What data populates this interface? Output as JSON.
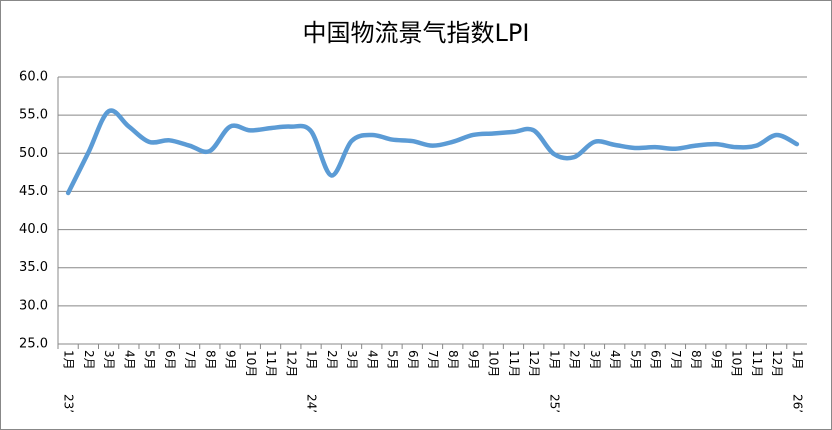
{
  "chart_data": {
    "type": "line",
    "title": "中国物流景气指数LPI",
    "categories": [
      "1月",
      "2月",
      "3月",
      "4月",
      "5月",
      "6月",
      "7月",
      "8月",
      "9月",
      "10月",
      "11月",
      "12月",
      "1月",
      "2月",
      "3月",
      "4月",
      "5月",
      "6月",
      "7月",
      "8月",
      "9月",
      "10月",
      "11月",
      "12月",
      "1月",
      "2月",
      "3月",
      "4月",
      "5月",
      "6月",
      "7月",
      "8月",
      "9月",
      "10月",
      "11月",
      "12月",
      "1月"
    ],
    "year_labels": [
      "23’",
      null,
      null,
      null,
      null,
      null,
      null,
      null,
      null,
      null,
      null,
      null,
      "24’",
      null,
      null,
      null,
      null,
      null,
      null,
      null,
      null,
      null,
      null,
      null,
      "25’",
      null,
      null,
      null,
      null,
      null,
      null,
      null,
      null,
      null,
      null,
      null,
      "26’"
    ],
    "series": [
      {
        "color": "#5b9bd5",
        "values": [
          44.8,
          50.1,
          55.5,
          53.5,
          51.5,
          51.7,
          51.0,
          50.3,
          53.5,
          53.0,
          53.3,
          53.5,
          52.9,
          47.1,
          51.6,
          52.4,
          51.8,
          51.6,
          51.0,
          51.5,
          52.4,
          52.6,
          52.8,
          53.0,
          49.9,
          49.5,
          51.5,
          51.1,
          50.7,
          50.8,
          50.6,
          51.0,
          51.2,
          50.8,
          51.0,
          52.4,
          51.2
        ]
      }
    ],
    "ylim": [
      25,
      60
    ],
    "yticks": [
      {
        "value": 25,
        "label": "25.0"
      },
      {
        "value": 30,
        "label": "30.0"
      },
      {
        "value": 35,
        "label": "35.0"
      },
      {
        "value": 40,
        "label": "40.0"
      },
      {
        "value": 45,
        "label": "45.0"
      },
      {
        "value": 50,
        "label": "50.0"
      },
      {
        "value": 55,
        "label": "55.0"
      },
      {
        "value": 60,
        "label": "60.0"
      }
    ],
    "grid": true
  }
}
